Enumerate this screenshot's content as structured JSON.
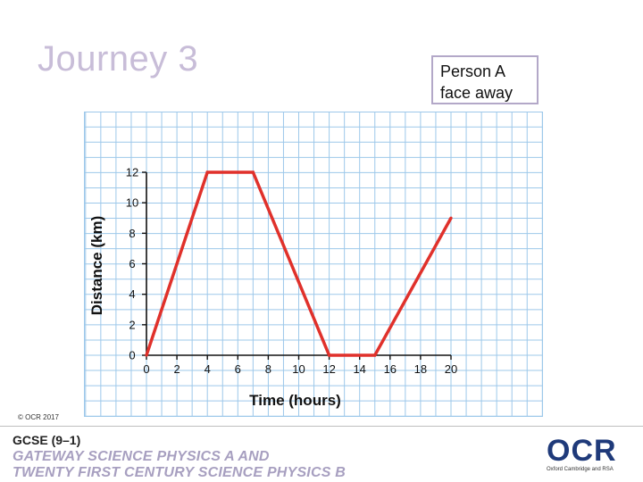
{
  "slide": {
    "title": "Journey 3",
    "note_lines": [
      "Person A",
      "face away"
    ],
    "copyright": "© OCR 2017"
  },
  "footer": {
    "gcse": "GCSE (9–1)",
    "subject_line1": "GATEWAY SCIENCE PHYSICS A AND",
    "subject_line2": "TWENTY FIRST CENTURY SCIENCE PHYSICS B",
    "logo_text": "OCR",
    "logo_tagline": "Oxford Cambridge and RSA"
  },
  "colors": {
    "grid": "#9dc8ea",
    "line": "#e0312b",
    "axis": "#111111",
    "title": "#c8bdd8"
  },
  "chart_data": {
    "type": "line",
    "title": "",
    "xlabel": "Time (hours)",
    "ylabel": "Distance (km)",
    "xlim": [
      0,
      20
    ],
    "ylim": [
      0,
      12
    ],
    "x_ticks": [
      0,
      2,
      4,
      6,
      8,
      10,
      12,
      14,
      16,
      18,
      20
    ],
    "y_ticks": [
      0,
      2,
      4,
      6,
      8,
      10,
      12
    ],
    "grid": true,
    "series": [
      {
        "x": [
          0,
          4,
          7,
          12,
          15,
          20
        ],
        "y": [
          0,
          12,
          12,
          0,
          0,
          9
        ]
      }
    ]
  }
}
